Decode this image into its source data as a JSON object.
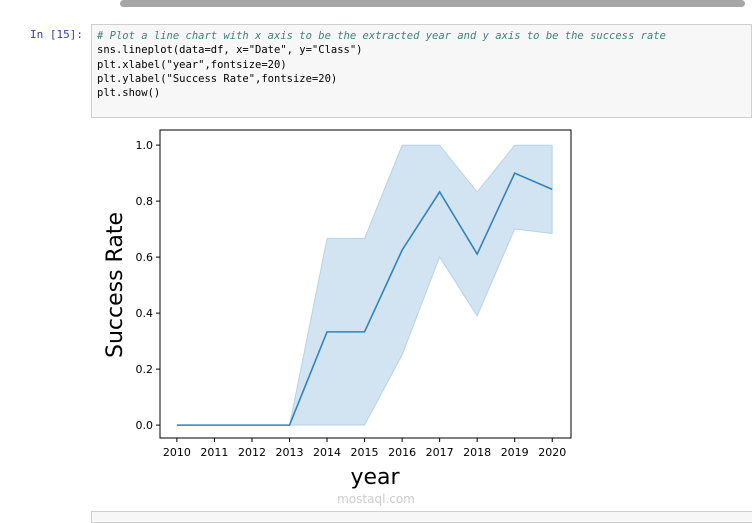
{
  "cell": {
    "prompt": "In [15]:",
    "code": [
      "# Plot a line chart with x axis to be the extracted year and y axis to be the success rate",
      "sns.lineplot(data=df, x=\"Date\", y=\"Class\")",
      "plt.xlabel(\"year\",fontsize=20)",
      "plt.ylabel(\"Success Rate\",fontsize=20)",
      "plt.show()"
    ]
  },
  "watermark": "mostaql.com",
  "chart_data": {
    "type": "line",
    "x_label": "year",
    "y_label": "Success Rate",
    "color": "#3182bd",
    "band_color": "#3182bd",
    "x": [
      2010,
      2012,
      2013,
      2014,
      2015,
      2016,
      2017,
      2018,
      2019,
      2020
    ],
    "values": [
      0,
      0,
      0,
      0.333,
      0.333,
      0.625,
      0.833,
      0.611,
      0.9,
      0.842
    ],
    "ci_lower": [
      0,
      0,
      0,
      0,
      0,
      0.25,
      0.6,
      0.389,
      0.7,
      0.684
    ],
    "ci_upper": [
      0,
      0,
      0,
      0.667,
      0.667,
      1,
      1,
      0.833,
      1,
      1
    ],
    "xlim": [
      2009.55,
      2020.5
    ],
    "ylim": [
      -0.046,
      1.054
    ],
    "xticks": [
      2010,
      2011,
      2012,
      2013,
      2014,
      2015,
      2016,
      2017,
      2018,
      2019,
      2020
    ],
    "yticks": [
      {
        "value": 0,
        "label": "0.0"
      },
      {
        "value": 0.2,
        "label": "0.2"
      },
      {
        "value": 0.4,
        "label": "0.4"
      },
      {
        "value": 0.6,
        "label": "0.6"
      },
      {
        "value": 0.8,
        "label": "0.8"
      },
      {
        "value": 1,
        "label": "1.0"
      }
    ]
  }
}
